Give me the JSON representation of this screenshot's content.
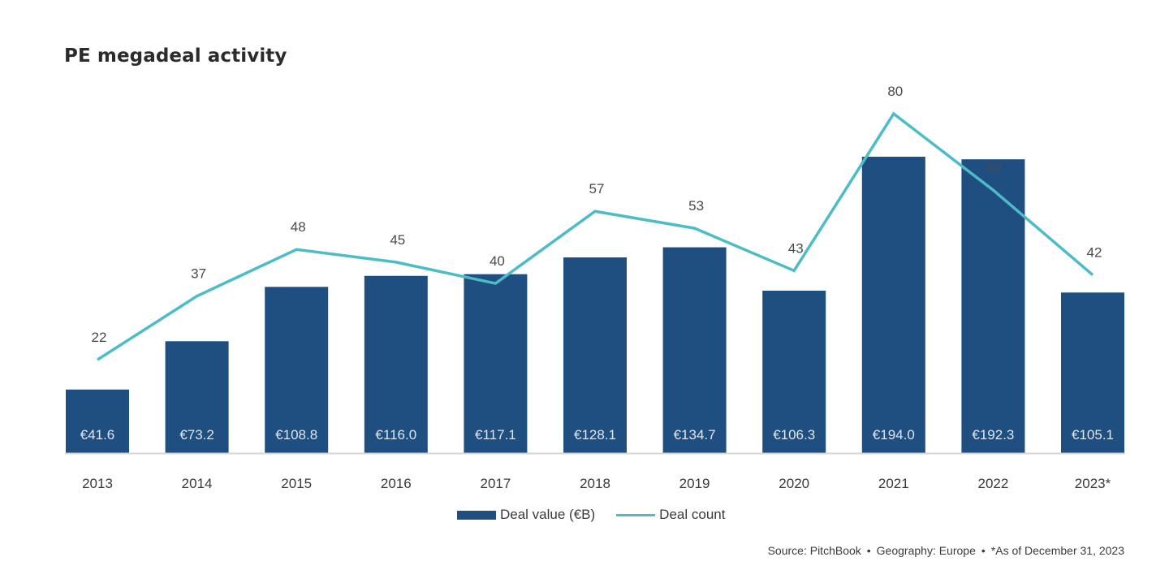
{
  "chart_data": {
    "type": "bar",
    "title": "PE megadeal activity",
    "categories": [
      "2013",
      "2014",
      "2015",
      "2016",
      "2017",
      "2018",
      "2019",
      "2020",
      "2021",
      "2022",
      "2023*"
    ],
    "series": [
      {
        "name": "Deal value (€B)",
        "type": "bar",
        "color": "#1f4e80",
        "values": [
          41.6,
          73.2,
          108.8,
          116.0,
          117.1,
          128.1,
          134.7,
          106.3,
          194.0,
          192.3,
          105.1
        ],
        "labels": [
          "€41.6",
          "€73.2",
          "€108.8",
          "€116.0",
          "€117.1",
          "€128.1",
          "€134.7",
          "€106.3",
          "€194.0",
          "€192.3",
          "€105.1"
        ]
      },
      {
        "name": "Deal count",
        "type": "line",
        "color": "#4cbcc6",
        "values": [
          22,
          37,
          48,
          45,
          40,
          57,
          53,
          43,
          80,
          62,
          42
        ],
        "labels": [
          "22",
          "37",
          "48",
          "45",
          "40",
          "57",
          "53",
          "43",
          "80",
          "62",
          "42"
        ]
      }
    ],
    "xlabel": "",
    "ylabel": "",
    "grid": false,
    "legend": "bottom-center",
    "source": {
      "text1": "Source: PitchBook",
      "text2": "Geography: Europe",
      "text3": "*As of December 31, 2023",
      "separator": "•"
    }
  }
}
